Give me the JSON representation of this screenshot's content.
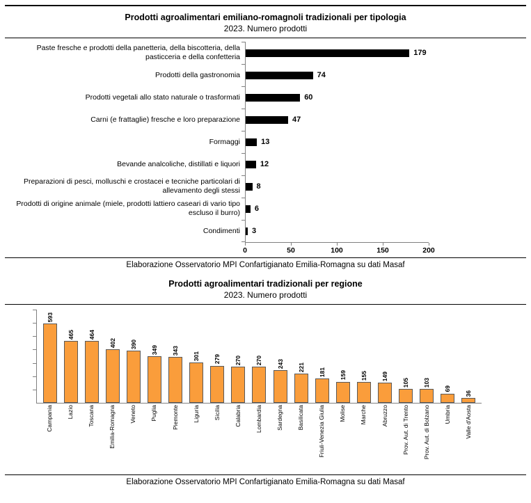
{
  "page": {
    "source_note": "Elaborazione Osservatorio MPI Confartigianato Emilia-Romagna su dati Masaf"
  },
  "chart_data": [
    {
      "type": "bar",
      "orientation": "horizontal",
      "title": "Prodotti agroalimentari emiliano-romagnoli tradizionali per tipologia",
      "subtitle": "2023. Numero prodotti",
      "categories": [
        "Paste fresche e prodotti della panetteria, della biscotteria, della pasticceria e della confetteria",
        "Prodotti della gastronomia",
        "Prodotti vegetali allo stato naturale o trasformati",
        "Carni (e frattaglie) fresche e loro preparazione",
        "Formaggi",
        "Bevande analcoliche, distillati e liquori",
        "Preparazioni di pesci, molluschi e crostacei e tecniche particolari di allevamento degli stessi",
        "Prodotti di origine animale (miele, prodotti lattiero caseari di vario tipo escluso il burro)",
        "Condimenti"
      ],
      "values": [
        179,
        74,
        60,
        47,
        13,
        12,
        8,
        6,
        3
      ],
      "xlim": [
        0,
        200
      ],
      "xticks": [
        0,
        50,
        100,
        150,
        200
      ],
      "bar_color": "#000000",
      "grid": false,
      "legend": false,
      "source": "Elaborazione Osservatorio MPI Confartigianato Emilia-Romagna su dati Masaf"
    },
    {
      "type": "bar",
      "orientation": "vertical",
      "title": "Prodotti agroalimentari tradizionali per regione",
      "subtitle": "2023. Numero prodotti",
      "categories": [
        "Campania",
        "Lazio",
        "Toscana",
        "Emilia-Romagna",
        "Veneto",
        "Puglia",
        "Piemonte",
        "Liguria",
        "Sicilia",
        "Calabria",
        "Lombardia",
        "Sardegna",
        "Basilicata",
        "Friuli-Venezia Giulia",
        "Molise",
        "Marche",
        "Abruzzo",
        "Prov. Aut. di Trento",
        "Prov. Aut. di Bolzano",
        "Umbria",
        "Valle d'Aosta"
      ],
      "values": [
        593,
        465,
        464,
        402,
        390,
        349,
        343,
        301,
        279,
        270,
        270,
        243,
        221,
        181,
        159,
        155,
        149,
        105,
        103,
        69,
        36
      ],
      "ylim": [
        0,
        700
      ],
      "ytick_interval": 100,
      "bar_color": "#FA9D3B",
      "bar_border_color": "#595959",
      "grid": false,
      "legend": false,
      "source": "Elaborazione Osservatorio MPI Confartigianato Emilia-Romagna su dati Masaf"
    }
  ]
}
